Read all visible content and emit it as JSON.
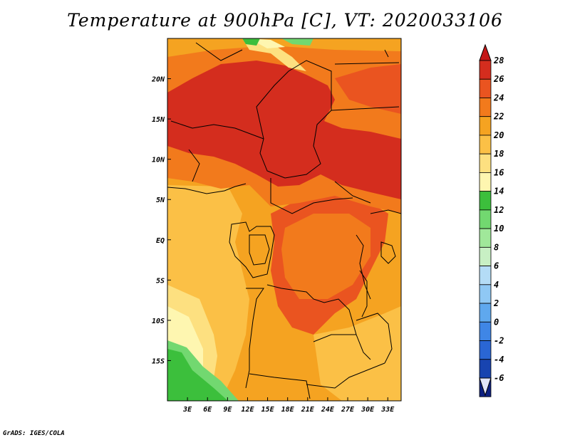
{
  "title": "Temperature at 900hPa [C], VT: 2020033106",
  "credit": "GrADS: IGES/COLA",
  "map": {
    "lon_range": [
      0,
      35
    ],
    "lat_range": [
      -20,
      25
    ],
    "lon_ticks": [
      "3E",
      "6E",
      "9E",
      "12E",
      "15E",
      "18E",
      "21E",
      "24E",
      "27E",
      "30E",
      "33E"
    ],
    "lat_ticks": [
      "20N",
      "15N",
      "10N",
      "5N",
      "EQ",
      "5S",
      "10S",
      "15S"
    ]
  },
  "colorbar": {
    "levels": [
      "28",
      "26",
      "24",
      "22",
      "20",
      "18",
      "16",
      "14",
      "12",
      "10",
      "8",
      "6",
      "4",
      "2",
      "0",
      "-2",
      "-4",
      "-6"
    ],
    "colors": [
      "#d42d1e",
      "#ea5420",
      "#f27a1c",
      "#f5a321",
      "#fbc046",
      "#fde080",
      "#fef6b0",
      "#3cbf3c",
      "#72d870",
      "#a0e89a",
      "#c8f0c4",
      "#b4dcf6",
      "#8fc8f4",
      "#5fa8ee",
      "#3f86e6",
      "#2a66d4",
      "#1844b0",
      "#0d2080",
      "#0b0c5c"
    ],
    "top_triangle_color": "#c41818",
    "bottom_triangle_color": "#e0e4f8"
  }
}
